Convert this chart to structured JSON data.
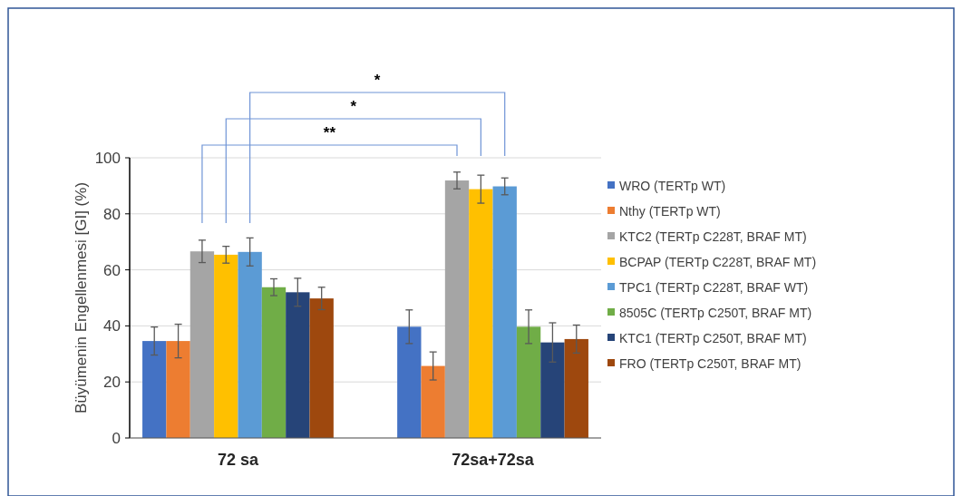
{
  "chart_data": {
    "type": "bar",
    "ylabel": "Büyümenin Engellenmesi [GI] (%)",
    "categories": [
      "72 sa",
      "72sa+72sa"
    ],
    "ylim": [
      0,
      100
    ],
    "yticks": [
      0,
      20,
      40,
      60,
      80,
      100
    ],
    "grid": "y",
    "legend": "right",
    "series": [
      {
        "name": "WRO (TERTp WT)",
        "color": "#4472c4",
        "values": [
          34.6,
          39.7
        ],
        "errors": [
          5,
          6
        ]
      },
      {
        "name": "Nthy (TERTp WT)",
        "color": "#ed7d31",
        "values": [
          34.6,
          25.7
        ],
        "errors": [
          6,
          5
        ]
      },
      {
        "name": "KTC2 (TERTp C228T, BRAF MT)",
        "color": "#a5a5a5",
        "values": [
          66.6,
          91.9
        ],
        "errors": [
          4,
          3
        ]
      },
      {
        "name": "BCPAP (TERTp C228T, BRAF MT)",
        "color": "#ffc000",
        "values": [
          65.4,
          88.8
        ],
        "errors": [
          3,
          5
        ]
      },
      {
        "name": "TPC1 (TERTp C228T, BRAF WT)",
        "color": "#5b9bd5",
        "values": [
          66.4,
          89.8
        ],
        "errors": [
          5,
          3
        ]
      },
      {
        "name": "8505C (TERTp C250T, BRAF MT)",
        "color": "#70ad47",
        "values": [
          53.8,
          39.7
        ],
        "errors": [
          3,
          6
        ]
      },
      {
        "name": "KTC1 (TERTp C250T, BRAF MT)",
        "color": "#264478",
        "values": [
          52,
          34.1
        ],
        "errors": [
          5,
          7
        ]
      },
      {
        "name": "FRO (TERTp C250T, BRAF MT)",
        "color": "#9e480e",
        "values": [
          49.8,
          35.3
        ],
        "errors": [
          4,
          5
        ]
      }
    ],
    "annotations": [
      "*",
      "*",
      "**"
    ]
  }
}
